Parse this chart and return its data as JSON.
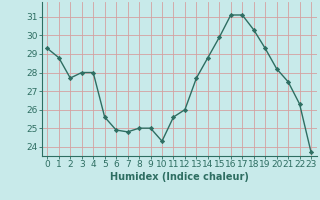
{
  "x": [
    0,
    1,
    2,
    3,
    4,
    5,
    6,
    7,
    8,
    9,
    10,
    11,
    12,
    13,
    14,
    15,
    16,
    17,
    18,
    19,
    20,
    21,
    22,
    23
  ],
  "y": [
    29.3,
    28.8,
    27.7,
    28.0,
    28.0,
    25.6,
    24.9,
    24.8,
    25.0,
    25.0,
    24.3,
    25.6,
    26.0,
    27.7,
    28.8,
    29.9,
    31.1,
    31.1,
    30.3,
    29.3,
    28.2,
    27.5,
    26.3,
    23.7
  ],
  "line_color": "#2e6e62",
  "marker": "D",
  "marker_size": 2.2,
  "line_width": 1.0,
  "background_color": "#c8eaea",
  "grid_color": "#d4a0a0",
  "xlabel": "Humidex (Indice chaleur)",
  "ylabel_ticks": [
    24,
    25,
    26,
    27,
    28,
    29,
    30,
    31
  ],
  "ylim": [
    23.5,
    31.8
  ],
  "xlim": [
    -0.5,
    23.5
  ],
  "xtick_labels": [
    "0",
    "1",
    "2",
    "3",
    "4",
    "5",
    "6",
    "7",
    "8",
    "9",
    "10",
    "11",
    "12",
    "13",
    "14",
    "15",
    "16",
    "17",
    "18",
    "19",
    "20",
    "21",
    "22",
    "23"
  ],
  "xlabel_fontsize": 7.0,
  "tick_fontsize": 6.5
}
